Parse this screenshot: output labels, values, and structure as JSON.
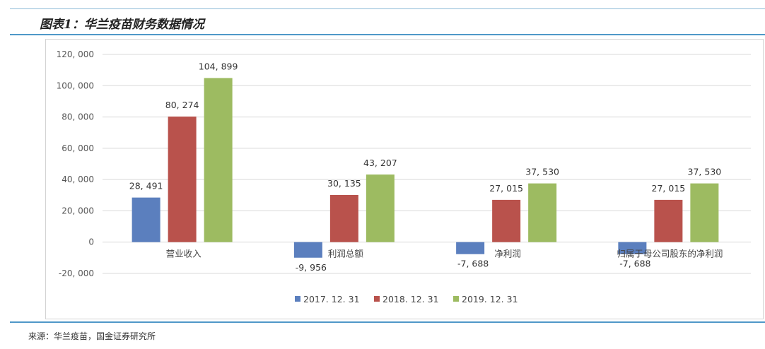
{
  "header": {
    "title": "图表1：华兰疫苗财务数据情况"
  },
  "source": "来源：华兰疫苗，国金证券研究所",
  "colors": [
    "#5b7fbe",
    "#b9524c",
    "#9dbb61"
  ],
  "chart_data": {
    "type": "bar",
    "categories": [
      "营业收入",
      "利润总额",
      "净利润",
      "归属于母公司股东的净利润"
    ],
    "series": [
      {
        "name": "2017. 12. 31",
        "values": [
          28491,
          -9956,
          -7688,
          -7688
        ],
        "labels": [
          "28, 491",
          "-9, 956",
          "-7, 688",
          "-7, 688"
        ]
      },
      {
        "name": "2018. 12. 31",
        "values": [
          80274,
          30135,
          27015,
          27015
        ],
        "labels": [
          "80, 274",
          "30, 135",
          "27, 015",
          "27, 015"
        ]
      },
      {
        "name": "2019. 12. 31",
        "values": [
          104899,
          43207,
          37530,
          37530
        ],
        "labels": [
          "104, 899",
          "43, 207",
          "37, 530",
          "37, 530"
        ]
      }
    ],
    "ylim": [
      -20000,
      120000
    ],
    "yticks": [
      -20000,
      0,
      20000,
      40000,
      60000,
      80000,
      100000,
      120000
    ],
    "ytick_labels": [
      "-20, 000",
      "0",
      "20, 000",
      "40, 000",
      "60, 000",
      "80, 000",
      "100, 000",
      "120, 000"
    ],
    "grid": true,
    "legend": "bottom"
  }
}
